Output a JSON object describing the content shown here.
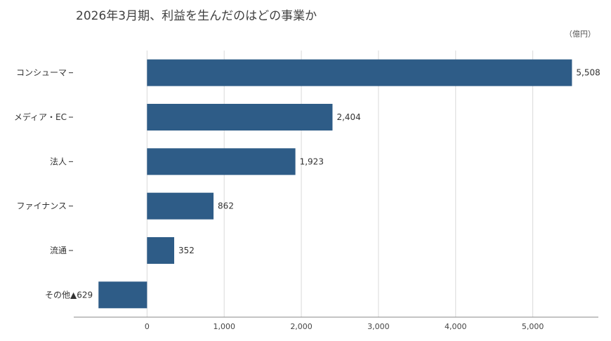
{
  "chart_data": {
    "type": "bar",
    "orientation": "horizontal",
    "title": "2026年3月期、利益を生んだのはどの事業か",
    "unit": "（億円）",
    "categories": [
      "コンシューマ",
      "メディア・EC",
      "法人",
      "ファイナンス",
      "流通",
      "その他"
    ],
    "values": [
      5508,
      2404,
      1923,
      862,
      352,
      -629
    ],
    "value_labels": [
      "5,508",
      "2,404",
      "1,923",
      "862",
      "352",
      "▲629"
    ],
    "x_ticks": [
      0,
      1000,
      2000,
      3000,
      4000,
      5000
    ],
    "x_tick_labels": [
      "0",
      "1,000",
      "2,000",
      "3,000",
      "4,000",
      "5,000"
    ],
    "xlim": [
      -950,
      5850
    ],
    "grid": "vertical",
    "bar_color": "#2e5c87",
    "grid_color": "#d9d9d9",
    "axis_color": "#888888"
  }
}
